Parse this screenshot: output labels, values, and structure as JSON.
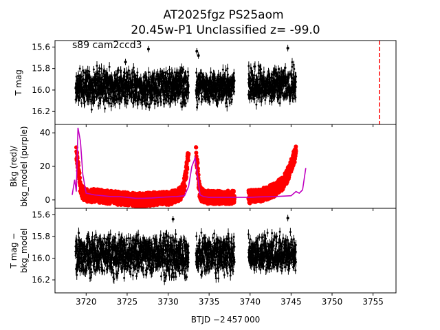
{
  "figure": {
    "title_line1": "AT2025fgz  PS25aom",
    "title_line2": "20.45w-P1 Unclassified z= -99.0",
    "xlabel": "BTJD −2 457 000",
    "x_ticks": [
      3720,
      3725,
      3730,
      3735,
      3740,
      3745,
      3750,
      3755
    ],
    "xlim": [
      3716.2,
      3757.8
    ]
  },
  "chart_data": [
    {
      "type": "scatter",
      "panel": "top",
      "ylabel": "T mag",
      "annotation": "s89 cam2ccd3",
      "ylim": [
        16.32,
        15.54
      ],
      "y_inverted": true,
      "y_ticks": [
        15.6,
        15.8,
        16.0,
        16.2
      ],
      "marker_color": "#000000",
      "segments": [
        {
          "x_start": 3718.7,
          "x_end": 3732.5,
          "y_center": 15.97,
          "y_low": 16.2,
          "y_high": 15.75
        },
        {
          "x_start": 3733.4,
          "x_end": 3738.1,
          "y_center": 15.97,
          "y_low": 16.2,
          "y_high": 15.78
        },
        {
          "x_start": 3739.8,
          "x_end": 3745.6,
          "y_center": 15.97,
          "y_low": 16.15,
          "y_high": 15.72
        }
      ],
      "outliers": [
        [
          3724.8,
          15.74
        ],
        [
          3727.6,
          15.62
        ],
        [
          3733.5,
          15.64
        ],
        [
          3733.7,
          15.68
        ],
        [
          3743.0,
          15.84
        ],
        [
          3744.6,
          15.61
        ]
      ],
      "vline": {
        "x": 3755.8,
        "color": "#ff0000",
        "style": "dashed"
      }
    },
    {
      "type": "line",
      "panel": "middle",
      "ylabel_line1": "Bkg (red)/",
      "ylabel_line2": "bkg_model (purple)",
      "ylim": [
        -5,
        45
      ],
      "y_ticks": [
        0,
        20,
        40
      ],
      "series": [
        {
          "color": "#ff0000",
          "style": "scatter",
          "x": [
            3718.8,
            3719.0,
            3719.3,
            3719.6,
            3720.0,
            3720.5,
            3721,
            3722,
            3723,
            3724,
            3725,
            3726,
            3727,
            3728,
            3729,
            3730,
            3731,
            3731.6,
            3732.0,
            3732.3,
            3732.5,
            3733.4,
            3733.6,
            3733.8,
            3734.1,
            3734.5,
            3735,
            3736,
            3737,
            3738.1,
            3739.8,
            3740.5,
            3741,
            3742,
            3743,
            3744,
            3744.5,
            3745,
            3745.3,
            3745.6
          ],
          "y": [
            28,
            20,
            8,
            4,
            3,
            2.5,
            2.5,
            2,
            1.5,
            1,
            0.5,
            0,
            0.2,
            0.5,
            0.8,
            1,
            2,
            4,
            10,
            20,
            28,
            28,
            18,
            6,
            3,
            2,
            1.5,
            1.5,
            1.5,
            1.5,
            2,
            2,
            2.5,
            4,
            6,
            10,
            14,
            20,
            25,
            28
          ]
        },
        {
          "color": "#c000c0",
          "style": "line",
          "x": [
            3718.3,
            3718.6,
            3718.8,
            3719.0,
            3719.3,
            3719.6,
            3720.0,
            3721,
            3722,
            3723,
            3724,
            3725,
            3726,
            3727,
            3728,
            3729,
            3730,
            3731,
            3732,
            3732.5,
            3732.9,
            3733.3,
            3733.6,
            3733.9,
            3734.3,
            3735,
            3738,
            3740,
            3741,
            3743,
            3745,
            3745.6,
            3746.0,
            3746.4,
            3746.8
          ],
          "y": [
            3,
            12,
            5,
            43,
            35,
            15,
            4,
            3,
            2.5,
            2,
            2,
            1.5,
            1,
            1,
            1.2,
            1.5,
            1.8,
            2,
            2.5,
            8,
            20,
            25,
            14,
            3,
            2,
            1.5,
            1.5,
            1.5,
            1.8,
            2,
            2.5,
            5,
            4,
            6,
            19
          ]
        }
      ]
    },
    {
      "type": "scatter",
      "panel": "bottom",
      "ylabel_line1": "T mag −",
      "ylabel_line2": "bkg_model",
      "ylim": [
        16.32,
        15.54
      ],
      "y_inverted": true,
      "y_ticks": [
        15.6,
        15.8,
        16.0,
        16.2
      ],
      "marker_color": "#000000",
      "segments": [
        {
          "x_start": 3718.7,
          "x_end": 3732.5,
          "y_center": 15.97,
          "y_low": 16.24,
          "y_high": 15.72
        },
        {
          "x_start": 3733.4,
          "x_end": 3738.1,
          "y_center": 15.97,
          "y_low": 16.22,
          "y_high": 15.74
        },
        {
          "x_start": 3739.8,
          "x_end": 3745.6,
          "y_center": 15.97,
          "y_low": 16.18,
          "y_high": 15.72
        }
      ],
      "outliers": [
        [
          3730.6,
          15.64
        ],
        [
          3744.6,
          15.63
        ]
      ]
    }
  ]
}
